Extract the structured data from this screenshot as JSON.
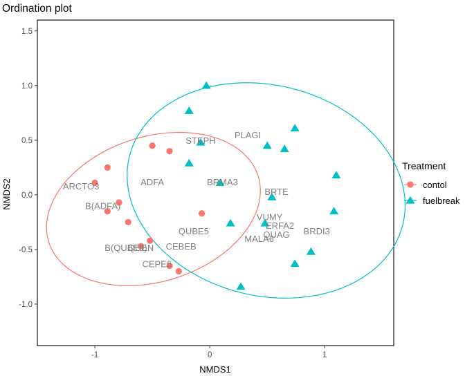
{
  "chart_data": {
    "type": "scatter",
    "title": "Ordination plot",
    "xlabel": "NMDS1",
    "ylabel": "NMDS2",
    "xlim": [
      -1.5,
      1.6
    ],
    "ylim": [
      -1.38,
      1.6
    ],
    "xticks": [
      -1,
      0,
      1
    ],
    "xtick_labels": [
      "-1",
      "0",
      "1"
    ],
    "yticks": [
      -1.0,
      -0.5,
      0.0,
      0.5,
      1.0,
      1.5
    ],
    "ytick_labels": [
      "-1.0",
      "-0.5",
      "0.0",
      "0.5",
      "1.0",
      "1.5"
    ],
    "grid": false,
    "legend": {
      "title": "Treatment",
      "position": "right",
      "entries": [
        {
          "label": "contol",
          "color": "#F8766D",
          "shape": "circle"
        },
        {
          "label": "fuelbreak",
          "color": "#00BFC4",
          "shape": "triangle"
        }
      ]
    },
    "series": [
      {
        "name": "contol",
        "color": "#F8766D",
        "shape": "circle",
        "points": [
          [
            -0.89,
            0.25
          ],
          [
            -1.0,
            0.11
          ],
          [
            -0.79,
            -0.07
          ],
          [
            -0.89,
            -0.15
          ],
          [
            -0.71,
            -0.25
          ],
          [
            -0.5,
            0.45
          ],
          [
            -0.35,
            0.4
          ],
          [
            -0.07,
            -0.17
          ],
          [
            -0.52,
            -0.42
          ],
          [
            -0.6,
            -0.47
          ],
          [
            -0.35,
            -0.65
          ],
          [
            -0.27,
            -0.7
          ]
        ],
        "ellipse": {
          "center": [
            -0.49,
            -0.13
          ],
          "rx": 0.66,
          "ry": 0.96,
          "angle_deg": 110,
          "color": "#F8766D"
        }
      },
      {
        "name": "fuelbreak",
        "color": "#00BFC4",
        "shape": "triangle",
        "points": [
          [
            -0.03,
            1.0
          ],
          [
            -0.18,
            0.77
          ],
          [
            -0.08,
            0.48
          ],
          [
            -0.18,
            0.29
          ],
          [
            0.09,
            0.11
          ],
          [
            0.5,
            0.45
          ],
          [
            0.65,
            0.42
          ],
          [
            0.74,
            0.61
          ],
          [
            0.54,
            -0.02
          ],
          [
            1.1,
            0.18
          ],
          [
            1.08,
            -0.15
          ],
          [
            0.18,
            -0.26
          ],
          [
            0.48,
            -0.26
          ],
          [
            0.88,
            -0.52
          ],
          [
            0.74,
            -0.63
          ],
          [
            0.27,
            -0.84
          ]
        ],
        "ellipse": {
          "center": [
            0.49,
            0.04
          ],
          "rx": 0.96,
          "ry": 1.23,
          "angle_deg": 73,
          "color": "#00BFC4"
        }
      }
    ],
    "species_labels": [
      {
        "text": "ARCTO3",
        "x": -1.12,
        "y": 0.08
      },
      {
        "text": "B(ADFA)",
        "x": -0.93,
        "y": -0.1
      },
      {
        "text": "ADFA",
        "x": -0.5,
        "y": 0.12
      },
      {
        "text": "STEPH",
        "x": -0.08,
        "y": 0.5
      },
      {
        "text": "PLAGI",
        "x": 0.33,
        "y": 0.55
      },
      {
        "text": "BRMA3",
        "x": 0.11,
        "y": 0.12
      },
      {
        "text": "BRTE",
        "x": 0.58,
        "y": 0.03
      },
      {
        "text": "VUMY",
        "x": 0.52,
        "y": -0.2
      },
      {
        "text": "ERFA2",
        "x": 0.61,
        "y": -0.28
      },
      {
        "text": "QUAG",
        "x": 0.58,
        "y": -0.36
      },
      {
        "text": "BRDI3",
        "x": 0.93,
        "y": -0.33
      },
      {
        "text": "MALA6",
        "x": 0.43,
        "y": -0.4
      },
      {
        "text": "QUBE5",
        "x": -0.14,
        "y": -0.33
      },
      {
        "text": "B(QUBE5)",
        "x": -0.73,
        "y": -0.48
      },
      {
        "text": "QUEN",
        "x": -0.6,
        "y": -0.48
      },
      {
        "text": "CEBEB",
        "x": -0.25,
        "y": -0.47
      },
      {
        "text": "CEPE6",
        "x": -0.46,
        "y": -0.63
      }
    ]
  }
}
